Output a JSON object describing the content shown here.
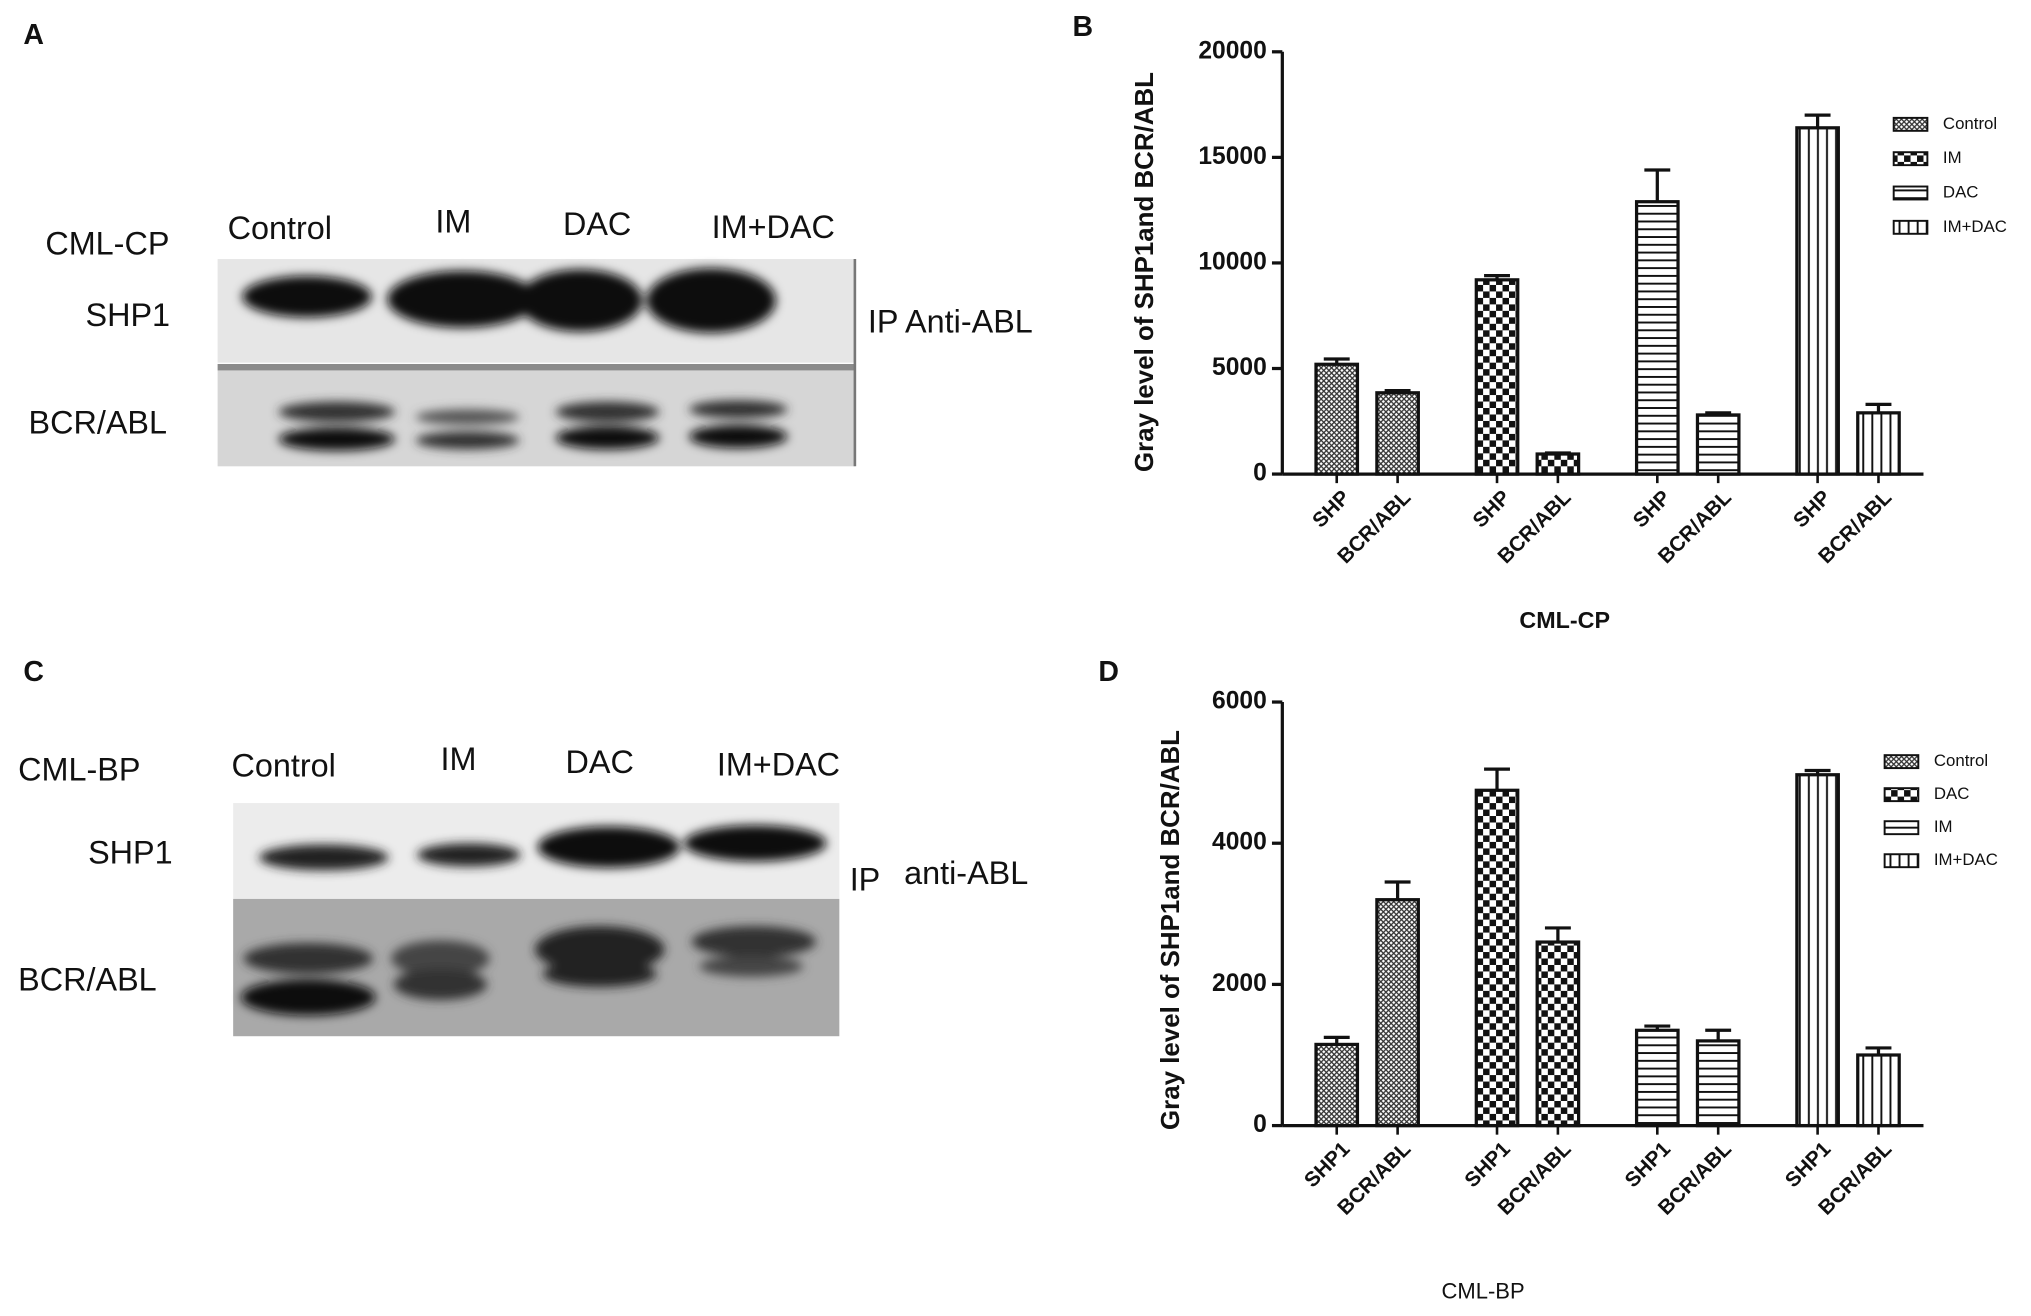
{
  "blots": [
    {
      "panel": "A",
      "cell_line": "CML-CP",
      "lanes": [
        "Control",
        "IM",
        "DAC",
        "IM+DAC"
      ],
      "rows": [
        "SHP1",
        "BCR/ABL"
      ],
      "ip_label": "IP Anti-ABL"
    },
    {
      "panel": "C",
      "cell_line": "CML-BP",
      "lanes": [
        "Control",
        "IM",
        "DAC",
        "IM+DAC"
      ],
      "rows": [
        "SHP1",
        "BCR/ABL"
      ],
      "ip_label": "IP",
      "antibody": "anti-ABL"
    }
  ],
  "chart_data": [
    {
      "type": "bar",
      "panel": "B",
      "ylabel": "Gray level of SHP1and BCR/ABL",
      "xlabel": "CML-CP",
      "categories": [
        "SHP",
        "BCR/ABL"
      ],
      "ylim": [
        0,
        20000
      ],
      "yticks": [
        0,
        5000,
        10000,
        15000,
        20000
      ],
      "series": [
        {
          "name": "Control",
          "pattern": "crosshatch",
          "values": [
            5200,
            3850
          ],
          "errors": [
            250,
            100
          ]
        },
        {
          "name": "IM",
          "pattern": "checker",
          "values": [
            9200,
            950
          ],
          "errors": [
            200,
            50
          ]
        },
        {
          "name": "DAC",
          "pattern": "hlines",
          "values": [
            12900,
            2800
          ],
          "errors": [
            1500,
            100
          ]
        },
        {
          "name": "IM+DAC",
          "pattern": "vlines",
          "values": [
            16400,
            2900
          ],
          "errors": [
            600,
            400
          ]
        }
      ]
    },
    {
      "type": "bar",
      "panel": "D",
      "ylabel": "Gray level of SHP1and BCR/ABL",
      "xlabel": "CML-BP",
      "categories": [
        "SHP1",
        "BCR/ABL"
      ],
      "ylim": [
        0,
        6000
      ],
      "yticks": [
        0,
        2000,
        4000,
        6000
      ],
      "series": [
        {
          "name": "Control",
          "pattern": "crosshatch",
          "values": [
            1150,
            3200
          ],
          "errors": [
            100,
            250
          ]
        },
        {
          "name": "DAC",
          "pattern": "checker",
          "values": [
            4750,
            2600
          ],
          "errors": [
            300,
            200
          ]
        },
        {
          "name": "IM",
          "pattern": "hlines",
          "values": [
            1350,
            1200
          ],
          "errors": [
            60,
            150
          ]
        },
        {
          "name": "IM+DAC",
          "pattern": "vlines",
          "values": [
            4970,
            1000
          ],
          "errors": [
            60,
            100
          ]
        }
      ]
    }
  ]
}
